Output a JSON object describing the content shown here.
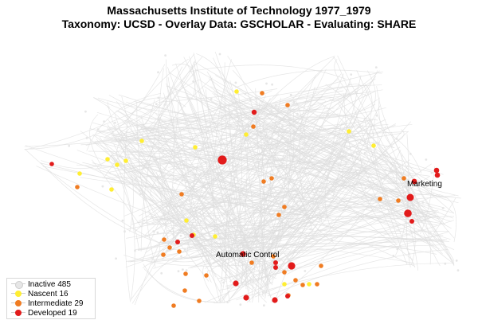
{
  "title": {
    "line1": "Massachusetts Institute of Technology 1977_1979",
    "line2": "Taxonomy: UCSD - Overlay Data: GSCHOLAR - Evaluating: SHARE"
  },
  "colors": {
    "edge": "#dedede",
    "inactive": "#e6e6e6",
    "nascent": "#ffee33",
    "intermediate": "#f07c22",
    "developed": "#e21b1b"
  },
  "legend": [
    {
      "key": "inactive",
      "label": "Inactive 485"
    },
    {
      "key": "nascent",
      "label": "Nascent 16"
    },
    {
      "key": "intermediate",
      "label": "Intermediate 29"
    },
    {
      "key": "developed",
      "label": "Developed 19"
    }
  ],
  "node_labels": [
    {
      "text": "Marketing"
    },
    {
      "text": "Automatic Control"
    }
  ]
}
